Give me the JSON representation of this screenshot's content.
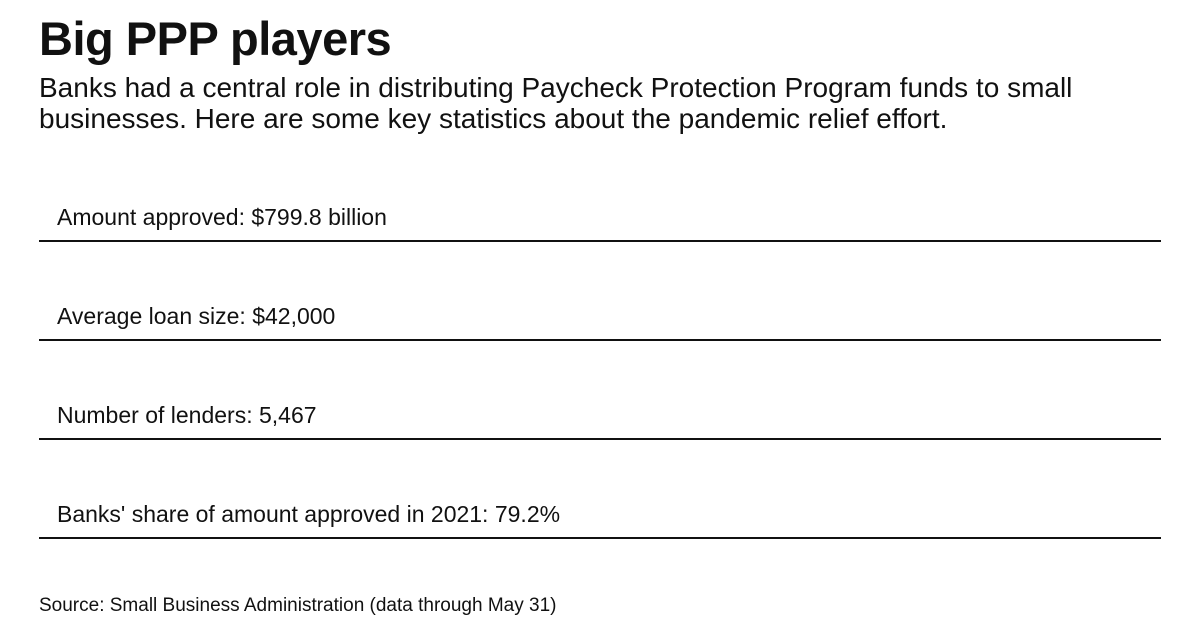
{
  "header": {
    "title": "Big PPP players",
    "subtitle": "Banks had a central role in distributing Paycheck Protection Program funds to small businesses. Here are some key statistics about the pandemic relief effort."
  },
  "stats": [
    {
      "text": "Amount approved: $799.8 billion"
    },
    {
      "text": "Average loan size: $42,000"
    },
    {
      "text": "Number of lenders: 5,467"
    },
    {
      "text": "Banks' share of amount approved in 2021: 79.2%"
    }
  ],
  "footer": {
    "source": "Source: Small Business Administration (data through May 31)"
  },
  "colors": {
    "text": "#111111",
    "rule": "#111111",
    "background": "#ffffff"
  }
}
